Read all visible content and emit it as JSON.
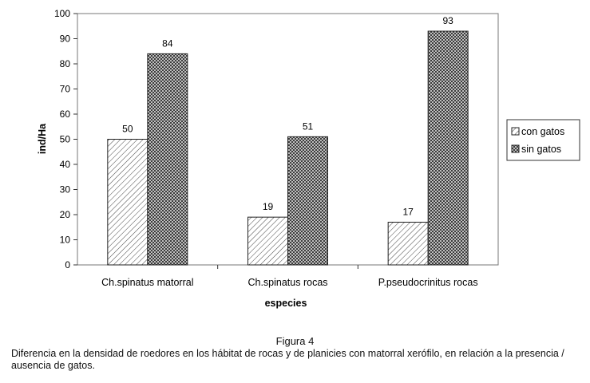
{
  "chart_data": {
    "type": "bar",
    "categories": [
      "Ch.spinatus matorral",
      "Ch.spinatus rocas",
      "P.pseudocrinitus rocas"
    ],
    "series": [
      {
        "name": "con gatos",
        "values": [
          50,
          19,
          17
        ],
        "pattern": "diagonal-hatch"
      },
      {
        "name": "sin gatos",
        "values": [
          84,
          51,
          93
        ],
        "pattern": "cross-hatch"
      }
    ],
    "xlabel": "especies",
    "ylabel": "ind/Ha",
    "ylim": [
      0,
      100
    ],
    "yticks": [
      0,
      10,
      20,
      30,
      40,
      50,
      60,
      70,
      80,
      90,
      100
    ],
    "legend": "right",
    "grid": false,
    "data_labels": true
  },
  "figure": {
    "title": "Figura 4",
    "caption": "Diferencia en la densidad  de roedores en los hábitat de rocas y de planicies con matorral xerófilo, en relación a la presencia / ausencia de gatos."
  }
}
